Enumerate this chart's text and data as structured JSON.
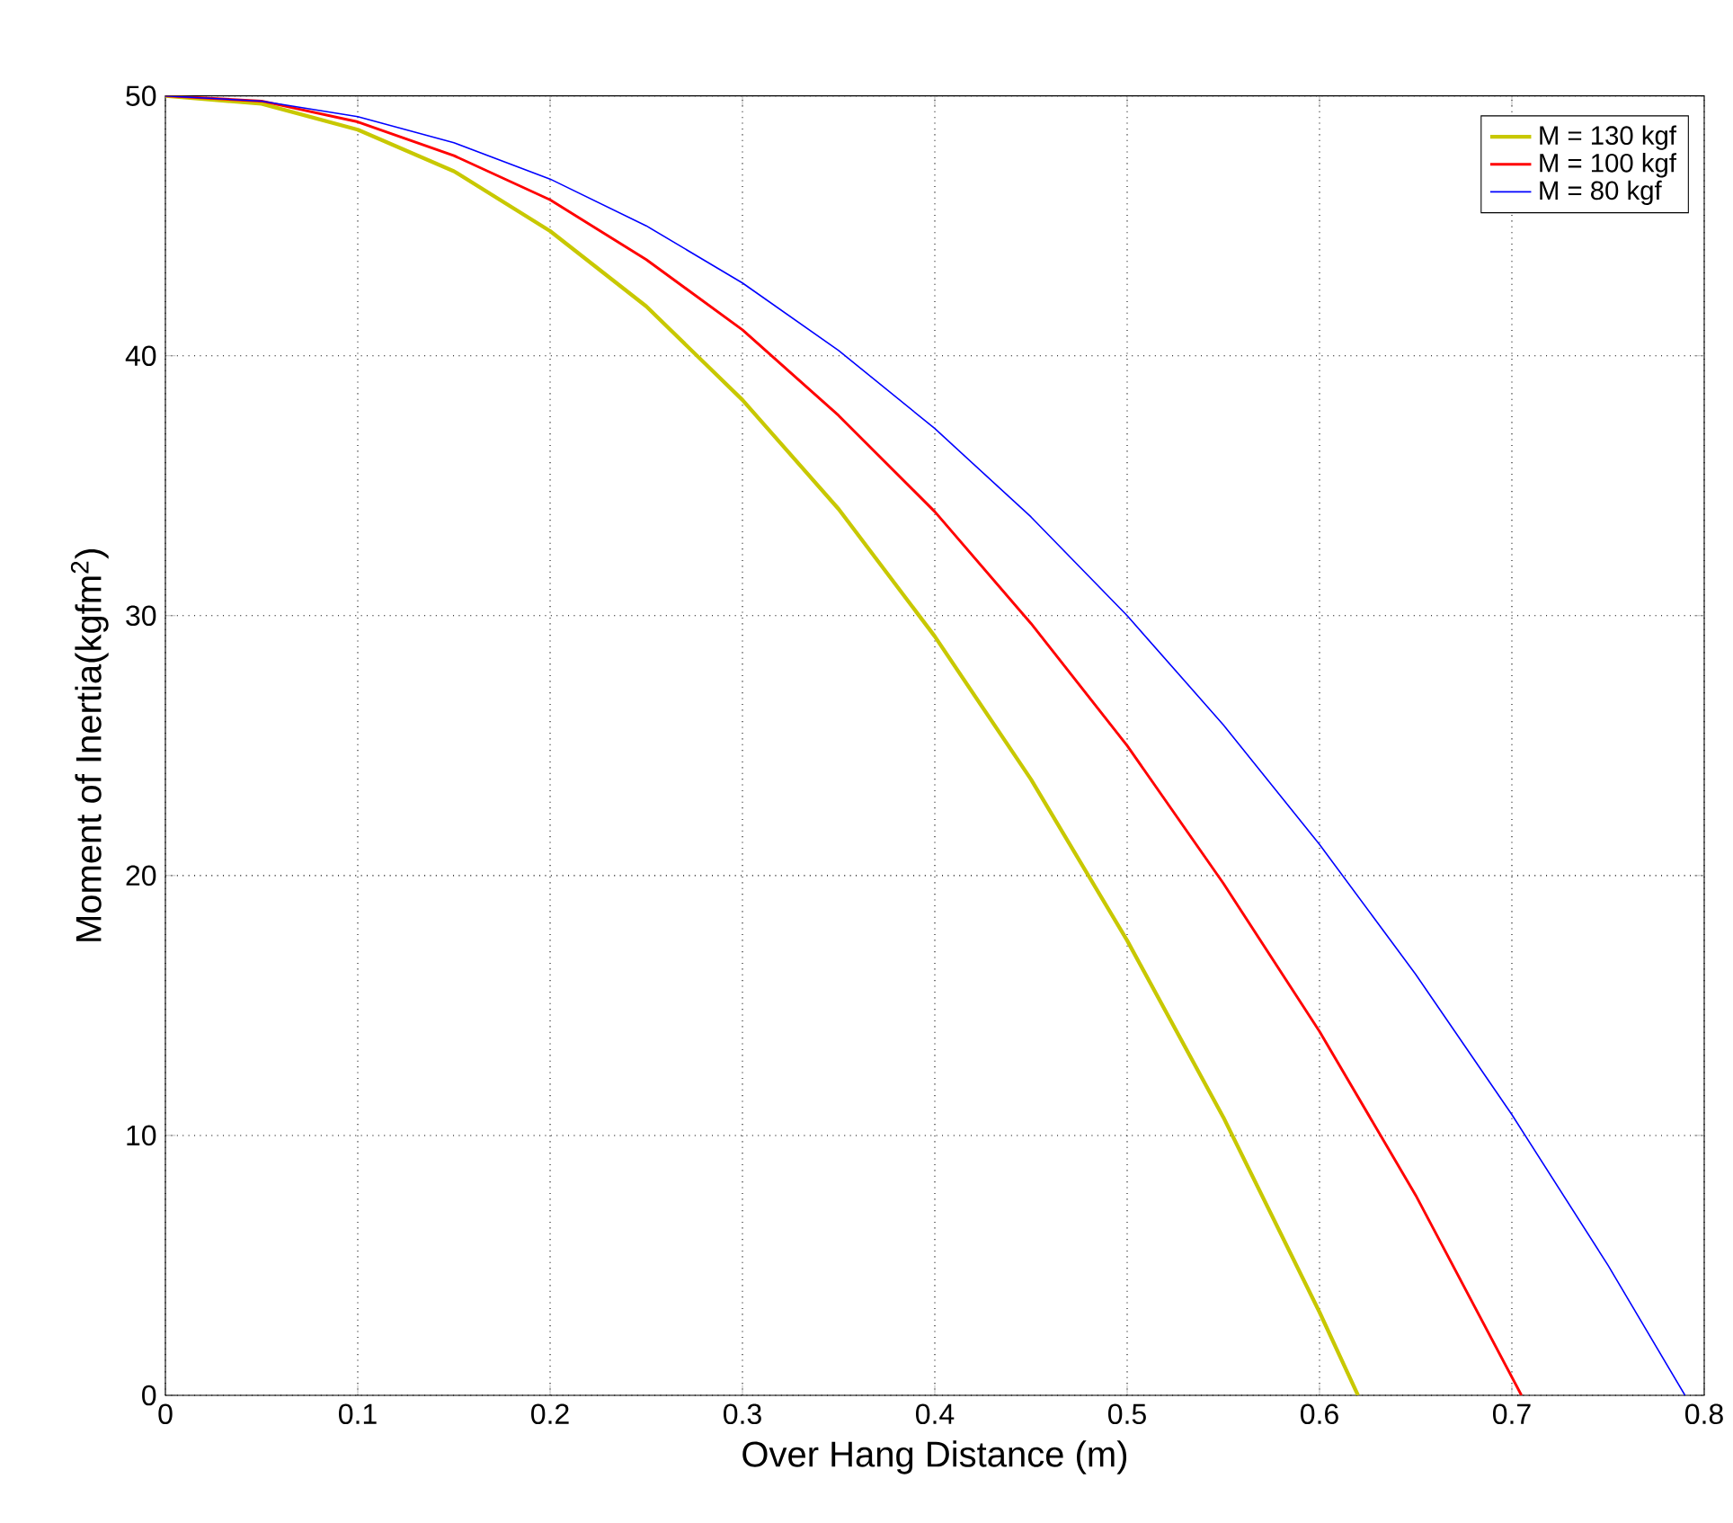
{
  "chart_data": {
    "type": "line",
    "xlabel": "Over Hang Distance (m)",
    "ylabel": "Moment of Inertia(kgfm$^{2}$)",
    "xlim": [
      0,
      0.8
    ],
    "xticks": [
      0,
      0.1,
      0.2,
      0.3,
      0.4,
      0.5,
      0.6,
      0.7,
      0.8
    ],
    "ylim": [
      0,
      50
    ],
    "yticks": [
      0,
      10,
      20,
      30,
      40,
      50
    ],
    "grid": true,
    "legend": "top right",
    "marker": "none",
    "line_style": "solid",
    "series": [
      {
        "name": "M = 130 kgf",
        "color": "#c8c800",
        "x": [
          0,
          0.05,
          0.1,
          0.15,
          0.2,
          0.25,
          0.3,
          0.35,
          0.4,
          0.45,
          0.5,
          0.55,
          0.6,
          0.62
        ],
        "values": [
          50,
          49.7,
          48.7,
          47.1,
          44.8,
          41.9,
          38.3,
          34.1,
          29.2,
          23.7,
          17.5,
          10.7,
          3.2,
          0
        ]
      },
      {
        "name": "M = 100 kgf",
        "color": "#ff0000",
        "x": [
          0,
          0.05,
          0.1,
          0.15,
          0.2,
          0.25,
          0.3,
          0.35,
          0.4,
          0.45,
          0.5,
          0.55,
          0.6,
          0.65,
          0.705
        ],
        "values": [
          50,
          49.8,
          49,
          47.7,
          46,
          43.7,
          41,
          37.7,
          34,
          29.7,
          25,
          19.7,
          14,
          7.7,
          0
        ]
      },
      {
        "name": "M =  80 kgf",
        "color": "#0000ff",
        "x": [
          0,
          0.05,
          0.1,
          0.15,
          0.2,
          0.25,
          0.3,
          0.35,
          0.4,
          0.45,
          0.5,
          0.55,
          0.6,
          0.65,
          0.7,
          0.75,
          0.79
        ],
        "values": [
          50,
          49.8,
          49.2,
          48.2,
          46.8,
          45,
          42.8,
          40.2,
          37.2,
          33.8,
          30,
          25.8,
          21.2,
          16.2,
          10.8,
          5,
          0
        ]
      }
    ]
  }
}
